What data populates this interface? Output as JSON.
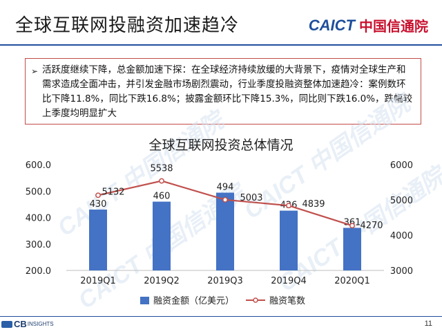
{
  "slide": {
    "title": "全球互联网投融资加速趋冷",
    "logo_en": "CAICT",
    "logo_cn": "中国信通院",
    "bullet_arrow": "➢",
    "bullet_text": "活跃度继续下降，总金额加速下探：在全球经济持续放缓的大背景下，疫情对全球生产和需求造成全面冲击，并引发金融市场剧烈震动，行业季度投融资整体加速趋冷：案例数环比下降11.8%，同比下跌16.8%；披露金额环比下降15.3%，同比则下跌16.0%，跌幅较上季度均明显扩大",
    "page_number": "11",
    "footer_logo": "CB",
    "footer_logo_sub": "INSIGHTS",
    "watermark": "CAICT 中国信通院"
  },
  "chart_data": {
    "type": "bar+line",
    "title": "全球互联网投资总体情况",
    "categories": [
      "2019Q1",
      "2019Q2",
      "2019Q3",
      "2019Q4",
      "2020Q1"
    ],
    "series": [
      {
        "name": "融资金额（亿美元）",
        "type": "bar",
        "axis": "left",
        "values": [
          430,
          460,
          494,
          426,
          361
        ],
        "color": "#4472c4"
      },
      {
        "name": "融资笔数",
        "type": "line",
        "axis": "right",
        "values": [
          5132,
          5538,
          5003,
          4839,
          4270
        ],
        "color": "#c0504d"
      }
    ],
    "y_left": {
      "min": 200,
      "max": 600,
      "ticks": [
        "200.0",
        "300.0",
        "400.0",
        "500.0",
        "600.0"
      ]
    },
    "y_right": {
      "min": 3000,
      "max": 6000,
      "ticks": [
        "3000",
        "4000",
        "5000",
        "6000"
      ]
    },
    "grid": false,
    "legend_position": "bottom"
  }
}
